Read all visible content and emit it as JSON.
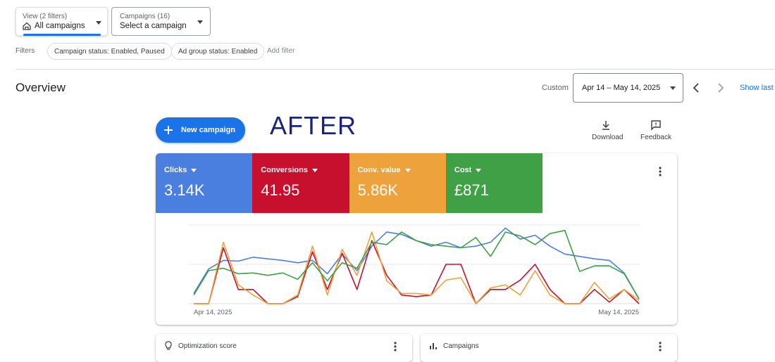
{
  "header": {
    "view_label": "View (2 filters)",
    "view_value": "All campaigns",
    "campaigns_label": "Campaigns (16)",
    "campaigns_value": "Select a campaign",
    "filters_label": "Filters",
    "filter_chips": [
      "Campaign status: Enabled, Paused",
      "Ad group status: Enabled"
    ],
    "add_filter": "Add filter"
  },
  "overview": {
    "title": "Overview",
    "range_label": "Custom",
    "date_range": "Apr 14 – May 14, 2025",
    "show_last": "Show last",
    "new_campaign": "New campaign",
    "annotation": "AFTER",
    "download": "Download",
    "feedback": "Feedback"
  },
  "tiles": [
    {
      "value": "3.14K"
    },
    {
      "value": "41.95"
    },
    {
      "value": "5.86K"
    },
    {
      "value": "£871"
    }
  ],
  "chart_data": {
    "type": "line",
    "categories": [
      "Apr 14, 2025",
      null,
      null,
      null,
      null,
      null,
      null,
      null,
      null,
      null,
      null,
      null,
      null,
      null,
      null,
      null,
      null,
      null,
      null,
      null,
      null,
      null,
      null,
      null,
      null,
      null,
      null,
      null,
      null,
      null,
      "May 14, 2025"
    ],
    "ylim": [
      0,
      100
    ],
    "series": [
      {
        "name": "Clicks",
        "color": "#4a7fe0",
        "values": [
          13,
          44,
          55,
          54,
          59,
          57,
          55,
          52,
          55,
          38,
          63,
          42,
          73,
          91,
          88,
          80,
          73,
          78,
          71,
          73,
          78,
          96,
          82,
          87,
          73,
          63,
          60,
          57,
          55,
          39,
          6
        ]
      },
      {
        "name": "Conversions",
        "color": "#c7102e",
        "values": [
          0,
          0,
          71,
          18,
          18,
          0,
          0,
          9,
          66,
          18,
          64,
          18,
          80,
          36,
          11,
          9,
          11,
          50,
          50,
          0,
          18,
          18,
          30,
          50,
          18,
          0,
          0,
          18,
          2,
          18,
          0
        ]
      },
      {
        "name": "Conv. value",
        "color": "#eea23c",
        "values": [
          0,
          0,
          78,
          24,
          11,
          0,
          0,
          11,
          73,
          11,
          69,
          36,
          91,
          29,
          13,
          13,
          11,
          30,
          33,
          0,
          20,
          24,
          11,
          42,
          11,
          0,
          0,
          27,
          6,
          18,
          4
        ]
      },
      {
        "name": "Cost",
        "color": "#3fa045",
        "values": [
          11,
          42,
          45,
          38,
          39,
          36,
          39,
          31,
          52,
          29,
          52,
          45,
          78,
          75,
          91,
          80,
          75,
          73,
          71,
          84,
          60,
          91,
          86,
          75,
          89,
          93,
          41,
          48,
          48,
          38,
          6
        ]
      }
    ]
  },
  "cards": [
    "Optimization score",
    "Campaigns"
  ]
}
